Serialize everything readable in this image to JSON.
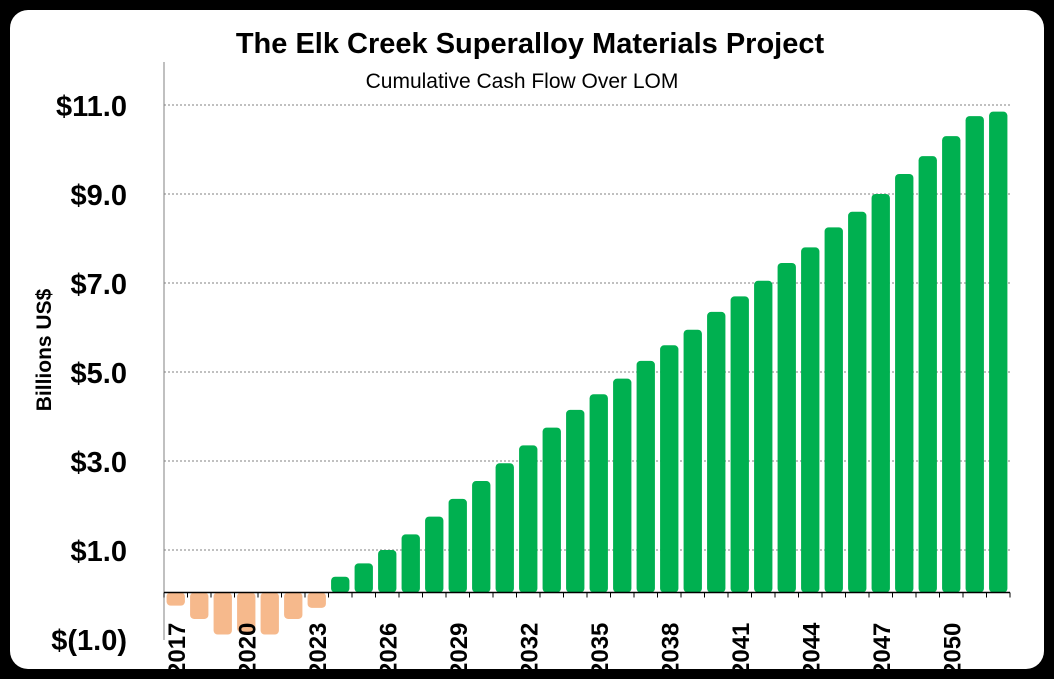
{
  "chart_data": {
    "type": "bar",
    "title": "The Elk Creek Superalloy Materials Project",
    "subtitle": "Cumulative Cash Flow Over LOM",
    "ylabel": "Billions US$",
    "xlabel": "",
    "ylim": [
      -1.0,
      12.0
    ],
    "y_ticks": [
      11.0,
      9.0,
      7.0,
      5.0,
      3.0,
      1.0,
      -1.0
    ],
    "y_tick_labels": [
      "$11.0",
      "$9.0",
      "$7.0",
      "$5.0",
      "$3.0",
      "$1.0",
      "$(1.0)"
    ],
    "grid": true,
    "legend": "none",
    "x_tick_labels": [
      "2017",
      "2020",
      "2023",
      "2026",
      "2029",
      "2032",
      "2035",
      "2038",
      "2041",
      "2044",
      "2047",
      "2050"
    ],
    "categories": [
      "2017",
      "2018",
      "2019",
      "2020",
      "2021",
      "2022",
      "2023",
      "2024",
      "2025",
      "2026",
      "2027",
      "2028",
      "2029",
      "2030",
      "2031",
      "2032",
      "2033",
      "2034",
      "2035",
      "2036",
      "2037",
      "2038",
      "2039",
      "2040",
      "2041",
      "2042",
      "2043",
      "2044",
      "2045",
      "2046",
      "2047",
      "2048",
      "2049",
      "2050",
      "2051",
      "2052"
    ],
    "values": [
      -0.25,
      -0.55,
      -0.9,
      -0.85,
      -0.9,
      -0.55,
      -0.3,
      0.4,
      0.7,
      1.0,
      1.35,
      1.75,
      2.15,
      2.55,
      2.95,
      3.35,
      3.75,
      4.15,
      4.5,
      4.85,
      5.25,
      5.6,
      5.95,
      6.35,
      6.7,
      7.05,
      7.45,
      7.8,
      8.25,
      8.6,
      9.0,
      9.45,
      9.85,
      10.3,
      10.75,
      10.85
    ],
    "colors": {
      "positive": "#00B050",
      "negative": "#F6B98C",
      "grid": "#808080"
    }
  }
}
